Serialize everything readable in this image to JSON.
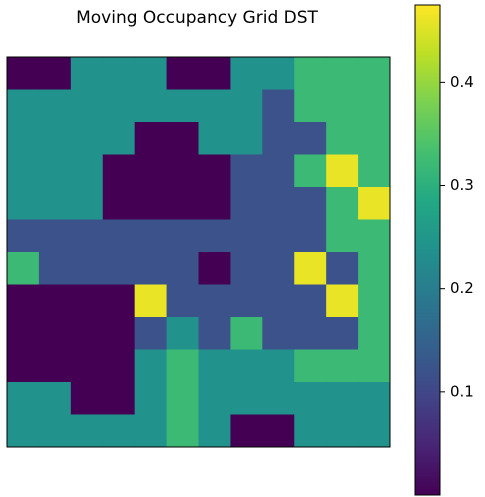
{
  "chart_data": {
    "type": "heatmap",
    "title": "Moving Occupancy Grid DST",
    "colormap": "viridis",
    "clim": [
      0,
      0.475
    ],
    "cticks": [
      0.1,
      0.2,
      0.3,
      0.4
    ],
    "values": [
      [
        0,
        0,
        0.24,
        0.24,
        0.24,
        0,
        0,
        0.24,
        0.24,
        0.32,
        0.32,
        0.32
      ],
      [
        0.24,
        0.24,
        0.24,
        0.24,
        0.24,
        0.24,
        0.24,
        0.24,
        0.12,
        0.32,
        0.32,
        0.32
      ],
      [
        0.24,
        0.24,
        0.24,
        0.24,
        0,
        0,
        0.24,
        0.24,
        0.12,
        0.12,
        0.32,
        0.32
      ],
      [
        0.24,
        0.24,
        0.24,
        0,
        0,
        0,
        0,
        0.12,
        0.12,
        0.32,
        0.46,
        0.32
      ],
      [
        0.24,
        0.24,
        0.24,
        0,
        0,
        0,
        0,
        0.12,
        0.12,
        0.12,
        0.32,
        0.46
      ],
      [
        0.12,
        0.12,
        0.12,
        0.12,
        0.12,
        0.12,
        0.12,
        0.12,
        0.12,
        0.12,
        0.32,
        0.32
      ],
      [
        0.32,
        0.12,
        0.12,
        0.12,
        0.12,
        0.12,
        0,
        0.12,
        0.12,
        0.46,
        0.12,
        0.32
      ],
      [
        0,
        0,
        0,
        0,
        0.46,
        0.12,
        0.12,
        0.12,
        0.12,
        0.12,
        0.46,
        0.32
      ],
      [
        0,
        0,
        0,
        0,
        0.12,
        0.24,
        0.12,
        0.32,
        0.12,
        0.12,
        0.12,
        0.32
      ],
      [
        0,
        0,
        0,
        0,
        0.24,
        0.32,
        0.24,
        0.24,
        0.24,
        0.32,
        0.32,
        0.32
      ],
      [
        0.24,
        0.24,
        0,
        0,
        0.24,
        0.32,
        0.24,
        0.24,
        0.24,
        0.24,
        0.24,
        0.24
      ],
      [
        0.24,
        0.24,
        0.24,
        0.24,
        0.24,
        0.32,
        0.24,
        0,
        0,
        0.24,
        0.24,
        0.24
      ]
    ]
  }
}
